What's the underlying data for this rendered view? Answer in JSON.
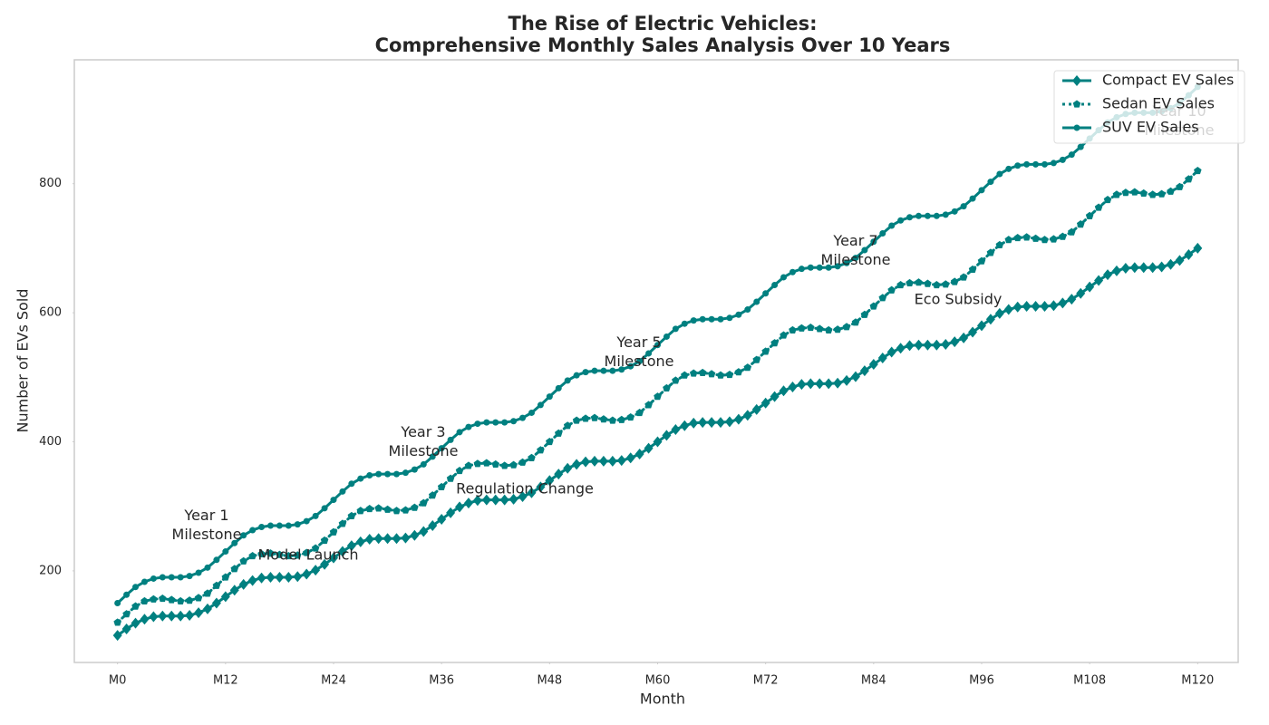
{
  "chart_data": {
    "type": "line",
    "title": "The Rise of Electric Vehicles:\nComprehensive Monthly Sales Analysis Over 10 Years",
    "x_label": "Month",
    "y_label": "Number of EVs Sold",
    "x": [
      0,
      1,
      2,
      3,
      4,
      5,
      6,
      7,
      8,
      9,
      10,
      11,
      12,
      13,
      14,
      15,
      16,
      17,
      18,
      19,
      20,
      21,
      22,
      23,
      24,
      25,
      26,
      27,
      28,
      29,
      30,
      31,
      32,
      33,
      34,
      35,
      36,
      37,
      38,
      39,
      40,
      41,
      42,
      43,
      44,
      45,
      46,
      47,
      48,
      49,
      50,
      51,
      52,
      53,
      54,
      55,
      56,
      57,
      58,
      59,
      60,
      61,
      62,
      63,
      64,
      65,
      66,
      67,
      68,
      69,
      70,
      71,
      72,
      73,
      74,
      75,
      76,
      77,
      78,
      79,
      80,
      81,
      82,
      83,
      84,
      85,
      86,
      87,
      88,
      89,
      90,
      91,
      92,
      93,
      94,
      95,
      96,
      97,
      98,
      99,
      100,
      101,
      102,
      103,
      104,
      105,
      106,
      107,
      108,
      109,
      110,
      111,
      112,
      113,
      114,
      115,
      116,
      117,
      118,
      119,
      120
    ],
    "series": [
      {
        "name": "Compact EV Sales",
        "color": "#008080",
        "linestyle": "solid",
        "marker": "diamond",
        "values": [
          100,
          110,
          119,
          125,
          129,
          130,
          130,
          130,
          131,
          135,
          141,
          150,
          160,
          170,
          179,
          185,
          189,
          190,
          190,
          190,
          191,
          195,
          201,
          210,
          220,
          230,
          239,
          245,
          249,
          250,
          250,
          250,
          251,
          255,
          261,
          270,
          280,
          290,
          299,
          305,
          309,
          310,
          310,
          310,
          311,
          315,
          321,
          330,
          340,
          350,
          359,
          365,
          369,
          370,
          370,
          370,
          371,
          375,
          381,
          390,
          400,
          410,
          419,
          425,
          429,
          430,
          430,
          430,
          431,
          435,
          441,
          450,
          460,
          470,
          479,
          485,
          489,
          490,
          490,
          490,
          491,
          495,
          501,
          510,
          520,
          530,
          539,
          545,
          549,
          550,
          550,
          550,
          551,
          555,
          561,
          570,
          580,
          590,
          599,
          605,
          609,
          610,
          610,
          610,
          611,
          615,
          621,
          630,
          640,
          650,
          659,
          665,
          669,
          670,
          670,
          670,
          671,
          675,
          681,
          690,
          700
        ]
      },
      {
        "name": "Sedan EV Sales",
        "color": "#008080",
        "linestyle": "dotted",
        "marker": "pentagon",
        "values": [
          120,
          133,
          145,
          153,
          156,
          157,
          155,
          153,
          154,
          158,
          165,
          177,
          190,
          203,
          215,
          223,
          226,
          227,
          225,
          223,
          224,
          228,
          235,
          247,
          260,
          273,
          285,
          293,
          296,
          297,
          295,
          293,
          294,
          298,
          305,
          317,
          330,
          343,
          355,
          363,
          366,
          367,
          365,
          363,
          364,
          368,
          375,
          387,
          400,
          413,
          425,
          433,
          436,
          437,
          435,
          433,
          434,
          438,
          445,
          457,
          470,
          483,
          495,
          503,
          506,
          507,
          505,
          503,
          504,
          508,
          515,
          527,
          540,
          553,
          565,
          573,
          576,
          577,
          575,
          573,
          574,
          578,
          585,
          597,
          610,
          623,
          635,
          643,
          646,
          647,
          645,
          643,
          644,
          648,
          655,
          667,
          680,
          693,
          705,
          713,
          716,
          717,
          715,
          713,
          714,
          718,
          725,
          737,
          750,
          763,
          775,
          783,
          786,
          787,
          785,
          783,
          784,
          788,
          795,
          807,
          820
        ]
      },
      {
        "name": "SUV EV Sales",
        "color": "#008080",
        "linestyle": "solid",
        "marker": "circle",
        "values": [
          150,
          163,
          175,
          183,
          188,
          190,
          190,
          190,
          192,
          197,
          205,
          217,
          230,
          243,
          255,
          263,
          268,
          270,
          270,
          270,
          272,
          277,
          285,
          297,
          310,
          323,
          335,
          343,
          348,
          350,
          350,
          350,
          352,
          357,
          365,
          377,
          390,
          403,
          415,
          423,
          428,
          430,
          430,
          430,
          432,
          437,
          445,
          457,
          470,
          483,
          495,
          503,
          508,
          510,
          510,
          510,
          512,
          517,
          525,
          537,
          550,
          563,
          575,
          583,
          588,
          590,
          590,
          590,
          592,
          597,
          605,
          617,
          630,
          643,
          655,
          663,
          668,
          670,
          670,
          670,
          672,
          677,
          685,
          697,
          710,
          723,
          735,
          743,
          748,
          750,
          750,
          750,
          752,
          757,
          765,
          777,
          790,
          803,
          815,
          823,
          828,
          830,
          830,
          830,
          832,
          837,
          845,
          857,
          870,
          883,
          895,
          903,
          908,
          910,
          910,
          910,
          912,
          917,
          925,
          937,
          950
        ]
      }
    ],
    "xlim": [
      -4.8,
      124.5
    ],
    "ylim": [
      58,
      992
    ],
    "xticks": [
      {
        "value": 0,
        "label": "M0"
      },
      {
        "value": 12,
        "label": "M12"
      },
      {
        "value": 24,
        "label": "M24"
      },
      {
        "value": 36,
        "label": "M36"
      },
      {
        "value": 48,
        "label": "M48"
      },
      {
        "value": 60,
        "label": "M60"
      },
      {
        "value": 72,
        "label": "M72"
      },
      {
        "value": 84,
        "label": "M84"
      },
      {
        "value": 96,
        "label": "M96"
      },
      {
        "value": 108,
        "label": "M108"
      },
      {
        "value": 120,
        "label": "M120"
      }
    ],
    "yticks": [
      200,
      400,
      600,
      800
    ],
    "grid": false,
    "legend": "upper right",
    "annotations": [
      "Year 1\nMilestone",
      "Model Launch",
      "Year 3\nMilestone",
      "Regulation Change",
      "Year 5\nMilestone",
      "Year 7\nMilestone",
      "Eco Subsidy",
      "Year 10\nMilestone"
    ]
  }
}
